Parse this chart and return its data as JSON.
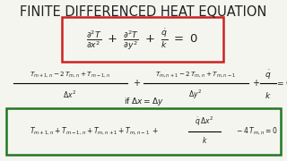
{
  "title": "FINITE DIFFERENCED HEAT EQUATION",
  "title_fontsize": 10.5,
  "title_color": "#111111",
  "background_color": "#f5f5f0",
  "eq1_box_color": "#cc2222",
  "eq4_box_color": "#227722",
  "text_color": "#222222"
}
